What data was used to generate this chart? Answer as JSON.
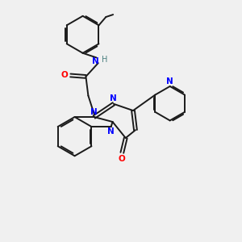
{
  "bg_color": "#f0f0f0",
  "bond_color": "#1a1a1a",
  "N_color": "#0000ff",
  "O_color": "#ff0000",
  "H_color": "#4a8080",
  "line_width": 1.4,
  "figsize": [
    3.0,
    3.0
  ],
  "dpi": 100,
  "xlim": [
    0,
    10
  ],
  "ylim": [
    0,
    10
  ]
}
